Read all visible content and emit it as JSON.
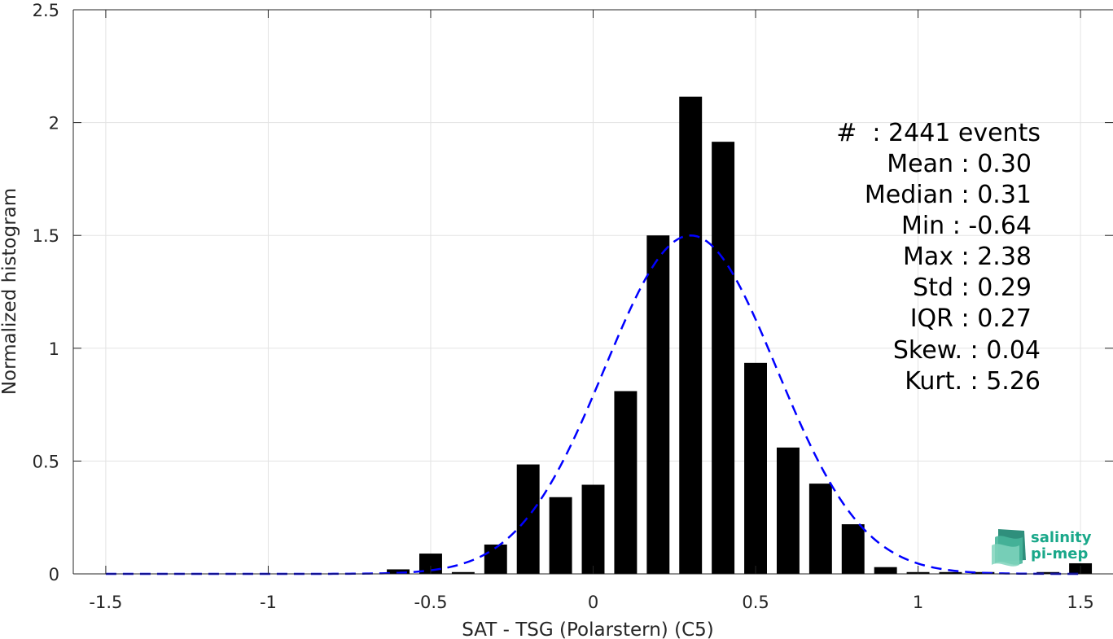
{
  "chart_data": {
    "type": "bar",
    "title": "",
    "xlabel": "SAT - TSG (Polarstern) (C5)",
    "ylabel": "Normalized histogram",
    "xlim": [
      -1.6,
      1.6
    ],
    "ylim": [
      0,
      2.5
    ],
    "xticks": [
      -1.5,
      -1,
      -0.5,
      0,
      0.5,
      1,
      1.5
    ],
    "xtick_labels": [
      "-1.5",
      "-1",
      "-0.5",
      "0",
      "0.5",
      "1",
      "1.5"
    ],
    "yticks": [
      0,
      0.5,
      1,
      1.5,
      2,
      2.5
    ],
    "ytick_labels": [
      "0",
      "0.5",
      "1",
      "1.5",
      "2",
      "2.5"
    ],
    "grid": true,
    "bar_color": "#000000",
    "bar_width": 0.07,
    "bars": [
      {
        "x": -0.6,
        "value": 0.02
      },
      {
        "x": -0.5,
        "value": 0.09
      },
      {
        "x": -0.4,
        "value": 0.008
      },
      {
        "x": -0.3,
        "value": 0.13
      },
      {
        "x": -0.2,
        "value": 0.485
      },
      {
        "x": -0.1,
        "value": 0.34
      },
      {
        "x": 0.0,
        "value": 0.395
      },
      {
        "x": 0.1,
        "value": 0.81
      },
      {
        "x": 0.2,
        "value": 1.5
      },
      {
        "x": 0.3,
        "value": 2.115
      },
      {
        "x": 0.4,
        "value": 1.915
      },
      {
        "x": 0.5,
        "value": 0.935
      },
      {
        "x": 0.6,
        "value": 0.56
      },
      {
        "x": 0.7,
        "value": 0.4
      },
      {
        "x": 0.8,
        "value": 0.22
      },
      {
        "x": 0.9,
        "value": 0.03
      },
      {
        "x": 1.0,
        "value": 0.008
      },
      {
        "x": 1.1,
        "value": 0.008
      },
      {
        "x": 1.2,
        "value": 0.008
      },
      {
        "x": 1.4,
        "value": 0.008
      },
      {
        "x": 1.5,
        "value": 0.047
      }
    ],
    "fit_curve": {
      "type": "gaussian",
      "mean": 0.3,
      "std": 0.265,
      "peak": 1.5,
      "x_range": [
        -1.5,
        1.5
      ],
      "color": "#0000ff",
      "style": "dashed"
    },
    "annotations": [
      "#  : 2441 events",
      "Mean : 0.30",
      "Median : 0.31",
      "Min : -0.64",
      "Max : 2.38",
      "Std : 0.29",
      "IQR : 0.27",
      "Skew. : 0.04",
      "Kurt. : 5.26"
    ]
  },
  "logo": {
    "line1": "salinity",
    "line2": "pi-mep",
    "color": "#1aa88a"
  }
}
